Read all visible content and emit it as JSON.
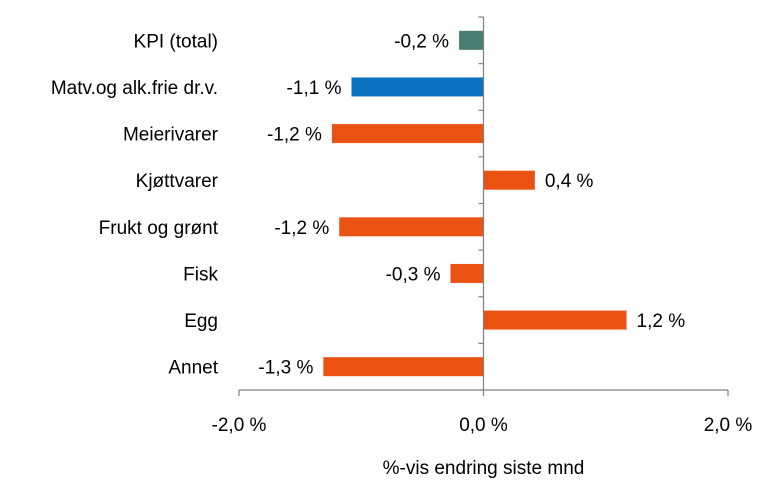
{
  "chart_data": {
    "type": "bar",
    "orientation": "horizontal",
    "title": "",
    "xlabel": "%-vis endring siste mnd",
    "ylabel": "",
    "xlim": [
      -2.0,
      2.0
    ],
    "categories": [
      "KPI (total)",
      "Matv.og alk.frie dr.v.",
      "Meierivarer",
      "Kjøttvarer",
      "Frukt og grønt",
      "Fisk",
      "Egg",
      "Annet"
    ],
    "values": [
      -0.2,
      -1.08,
      -1.24,
      0.42,
      -1.18,
      -0.27,
      1.17,
      -1.31
    ],
    "value_labels": [
      "-0,2 %",
      "-1,1 %",
      "-1,2 %",
      "0,4 %",
      "-1,2 %",
      "-0,3 %",
      "1,2 %",
      "-1,3 %"
    ],
    "colors": [
      "#4a7e72",
      "#0b72c2",
      "#ea5212",
      "#ea5212",
      "#ea5212",
      "#ea5212",
      "#ea5212",
      "#ea5212"
    ],
    "x_ticks": [
      -2.0,
      0.0,
      2.0
    ],
    "x_tick_labels": [
      "-2,0 %",
      "0,0 %",
      "2,0 %"
    ],
    "grid": false,
    "legend": "none"
  }
}
